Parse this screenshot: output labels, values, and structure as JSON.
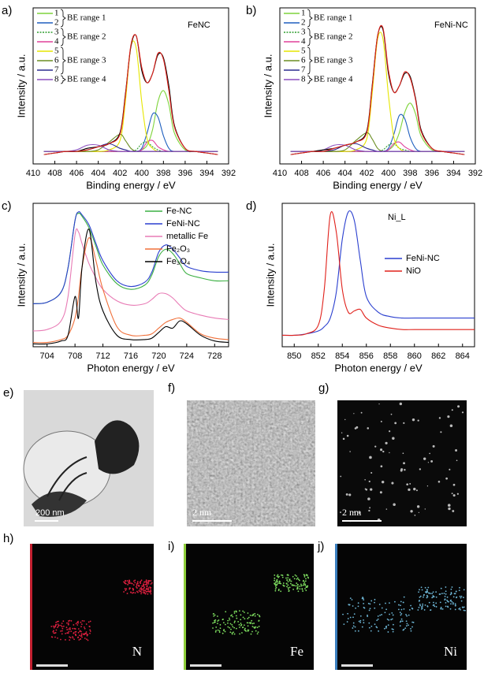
{
  "chart_data": [
    {
      "type": "line",
      "panel_label": "a)",
      "label": "FeNC",
      "x_label": "Binding energy / eV",
      "y_label": "Intensity / a.u.",
      "xlim": [
        410,
        392
      ],
      "xticks": [
        410,
        408,
        406,
        404,
        402,
        400,
        398,
        396,
        394,
        392
      ],
      "ylim": [
        0,
        100
      ],
      "legend": "upper left",
      "annotations": [
        "BE range 1",
        "BE range 2",
        "BE range 3",
        "BE range 4"
      ],
      "x": [
        409,
        408,
        407,
        406,
        405,
        404,
        403,
        402,
        401.5,
        401,
        400.5,
        400,
        399.5,
        399,
        398.5,
        398,
        397.5,
        397,
        396,
        395,
        394,
        393
      ],
      "series": [
        {
          "name": "1",
          "color": "#7fd43b",
          "values": [
            8,
            8,
            8,
            8,
            8,
            8,
            8,
            8,
            8,
            8,
            8,
            9,
            12,
            22,
            40,
            47,
            38,
            20,
            9,
            8,
            8,
            8
          ]
        },
        {
          "name": "2",
          "color": "#1f5fbf",
          "values": [
            8,
            8,
            8,
            8,
            8,
            8,
            8,
            8,
            8,
            8,
            8,
            10,
            20,
            32,
            30,
            18,
            10,
            8,
            8,
            8,
            8,
            8
          ]
        },
        {
          "name": "3",
          "color": "#2f9e2f",
          "dashed": true,
          "values": [
            8,
            8,
            8,
            8,
            8,
            8,
            8,
            8,
            8,
            8,
            9,
            13,
            14,
            11,
            9,
            8,
            8,
            8,
            8,
            8,
            8,
            8
          ]
        },
        {
          "name": "4",
          "color": "#e0409a",
          "values": [
            8,
            8,
            8,
            8,
            8,
            8,
            8,
            8,
            8,
            8,
            8,
            9,
            14,
            15,
            11,
            9,
            8,
            8,
            8,
            8,
            8,
            8
          ]
        },
        {
          "name": "5",
          "color": "#e6e600",
          "values": [
            8,
            8,
            8,
            8,
            8,
            8,
            9,
            15,
            40,
            75,
            74,
            40,
            16,
            10,
            8,
            8,
            8,
            8,
            8,
            8,
            8,
            8
          ]
        },
        {
          "name": "6",
          "color": "#6b8e23",
          "values": [
            8,
            8,
            8,
            8,
            8,
            9,
            14,
            19,
            15,
            10,
            8,
            8,
            8,
            8,
            8,
            8,
            8,
            8,
            8,
            8,
            8,
            8
          ]
        },
        {
          "name": "7",
          "color": "#2b2b8f",
          "values": [
            8,
            8,
            8,
            8,
            9,
            11,
            13,
            10,
            9,
            8,
            8,
            8,
            8,
            8,
            8,
            8,
            8,
            8,
            8,
            8,
            8,
            8
          ]
        },
        {
          "name": "8",
          "color": "#8b4fbf",
          "values": [
            8,
            8,
            8,
            9,
            12,
            12,
            9,
            8,
            8,
            8,
            8,
            8,
            8,
            8,
            8,
            8,
            8,
            8,
            8,
            8,
            8,
            8
          ]
        },
        {
          "color": "#000000",
          "values": [
            6,
            7,
            8,
            8,
            10,
            11,
            13,
            20,
            45,
            75,
            82,
            60,
            52,
            58,
            70,
            68,
            50,
            25,
            10,
            8,
            7,
            6
          ]
        },
        {
          "color": "#e0201a",
          "values": [
            6,
            7,
            8,
            8,
            9,
            11,
            13,
            19,
            44,
            76,
            82,
            62,
            52,
            58,
            71,
            67,
            47,
            24,
            10,
            8,
            7,
            6
          ]
        }
      ]
    },
    {
      "type": "line",
      "panel_label": "b)",
      "label": "FeNi-NC",
      "x_label": "Binding energy / eV",
      "y_label": "Intensity / a.u.",
      "xlim": [
        410,
        392
      ],
      "xticks": [
        410,
        408,
        406,
        404,
        402,
        400,
        398,
        396,
        394,
        392
      ],
      "ylim": [
        0,
        100
      ],
      "legend": "upper left",
      "annotations": [
        "BE range 1",
        "BE range 2",
        "BE range 3",
        "BE range 4"
      ],
      "x": [
        409,
        408,
        407,
        406,
        405,
        404,
        403,
        402,
        401.5,
        401,
        400.5,
        400,
        399.5,
        399,
        398.5,
        398,
        397.5,
        397,
        396,
        395,
        394,
        393
      ],
      "series": [
        {
          "name": "1",
          "color": "#7fd43b",
          "values": [
            8,
            8,
            8,
            8,
            8,
            8,
            8,
            8,
            8,
            8,
            8,
            9,
            12,
            20,
            33,
            39,
            32,
            18,
            9,
            8,
            8,
            8
          ]
        },
        {
          "name": "2",
          "color": "#1f5fbf",
          "values": [
            8,
            8,
            8,
            8,
            8,
            8,
            8,
            8,
            8,
            8,
            8,
            10,
            19,
            31,
            29,
            17,
            10,
            8,
            8,
            8,
            8,
            8
          ]
        },
        {
          "name": "3",
          "color": "#2f9e2f",
          "dashed": true,
          "values": [
            8,
            8,
            8,
            8,
            8,
            8,
            8,
            8,
            8,
            8,
            9,
            12,
            13,
            10,
            9,
            8,
            8,
            8,
            8,
            8,
            8,
            8
          ]
        },
        {
          "name": "4",
          "color": "#e0409a",
          "values": [
            8,
            8,
            8,
            8,
            8,
            8,
            8,
            8,
            8,
            8,
            8,
            9,
            13,
            14,
            11,
            9,
            8,
            8,
            8,
            8,
            8,
            8
          ]
        },
        {
          "name": "5",
          "color": "#e6e600",
          "values": [
            8,
            8,
            8,
            8,
            8,
            8,
            9,
            16,
            45,
            80,
            80,
            44,
            17,
            10,
            8,
            8,
            8,
            8,
            8,
            8,
            8,
            8
          ]
        },
        {
          "name": "6",
          "color": "#6b8e23",
          "values": [
            8,
            8,
            8,
            8,
            8,
            9,
            15,
            20,
            16,
            10,
            8,
            8,
            8,
            8,
            8,
            8,
            8,
            8,
            8,
            8,
            8,
            8
          ]
        },
        {
          "name": "7",
          "color": "#2b2b8f",
          "values": [
            8,
            8,
            8,
            8,
            9,
            12,
            13,
            10,
            9,
            8,
            8,
            8,
            8,
            8,
            8,
            8,
            8,
            8,
            8,
            8,
            8,
            8
          ]
        },
        {
          "name": "8",
          "color": "#8b4fbf",
          "values": [
            8,
            8,
            8,
            9,
            12,
            12,
            9,
            8,
            8,
            8,
            8,
            8,
            8,
            8,
            8,
            8,
            8,
            8,
            8,
            8,
            8,
            8
          ]
        },
        {
          "color": "#000000",
          "values": [
            6,
            7,
            8,
            9,
            10,
            12,
            14,
            21,
            50,
            82,
            86,
            58,
            46,
            50,
            58,
            56,
            42,
            22,
            10,
            8,
            7,
            6
          ]
        },
        {
          "color": "#e0201a",
          "values": [
            6,
            7,
            8,
            8,
            10,
            12,
            14,
            20,
            49,
            82,
            87,
            60,
            46,
            50,
            59,
            55,
            41,
            21,
            10,
            8,
            7,
            6
          ]
        }
      ]
    },
    {
      "type": "line",
      "panel_label": "c)",
      "x_label": "Photon energy / eV",
      "y_label": "Intensity / a.u.",
      "xlim": [
        702,
        730
      ],
      "xticks": [
        704,
        708,
        712,
        716,
        720,
        724,
        728
      ],
      "ylim": [
        0,
        100
      ],
      "legend": "upper right",
      "x": [
        702,
        704,
        706,
        707,
        708,
        708.5,
        709,
        710,
        711,
        712,
        714,
        716,
        718,
        719,
        720,
        721,
        722,
        723,
        724,
        726,
        728,
        730
      ],
      "series": [
        {
          "name": "Fe-NC",
          "color": "#3cb043",
          "values": [
            30,
            31,
            38,
            55,
            88,
            93,
            91,
            83,
            70,
            57,
            44,
            40,
            43,
            50,
            63,
            68,
            65,
            58,
            51,
            48,
            46,
            46
          ]
        },
        {
          "name": "FeNi-NC",
          "color": "#2a3fcf",
          "values": [
            30,
            31,
            38,
            55,
            88,
            94,
            92,
            85,
            72,
            60,
            46,
            42,
            45,
            52,
            66,
            71,
            68,
            62,
            56,
            53,
            52,
            52
          ]
        },
        {
          "name": "metallic Fe",
          "color": "#e87bb5",
          "values": [
            11,
            12,
            18,
            35,
            78,
            80,
            72,
            58,
            48,
            40,
            32,
            29,
            30,
            33,
            37,
            37,
            34,
            29,
            25,
            22,
            20,
            19
          ]
        },
        {
          "name": "Fe₂O₃",
          "color": "#f0703a",
          "values": [
            3,
            3,
            5,
            8,
            20,
            35,
            55,
            76,
            60,
            40,
            14,
            8,
            8,
            9,
            13,
            17,
            19,
            20,
            17,
            9,
            6,
            5
          ]
        },
        {
          "name": "Fe₃O₄",
          "color": "#000000",
          "values": [
            2,
            2,
            4,
            8,
            35,
            20,
            55,
            82,
            45,
            25,
            8,
            5,
            5,
            6,
            10,
            14,
            13,
            18,
            16,
            8,
            4,
            3
          ]
        }
      ]
    },
    {
      "type": "line",
      "panel_label": "d)",
      "label": "Ni_L",
      "x_label": "Photon energy / eV",
      "y_label": "Intensity / a.u.",
      "xlim": [
        849,
        865
      ],
      "xticks": [
        850,
        852,
        854,
        856,
        858,
        860,
        862,
        864
      ],
      "ylim": [
        0,
        100
      ],
      "legend": "center right",
      "x": [
        849,
        850,
        851,
        852,
        852.5,
        853,
        853.5,
        854,
        854.5,
        855,
        855.5,
        856,
        857,
        858,
        859,
        860,
        862,
        864,
        865
      ],
      "series": [
        {
          "name": "FeNi-NC",
          "color": "#2a3fcf",
          "values": [
            8,
            8,
            9,
            11,
            14,
            20,
            38,
            75,
            94,
            88,
            60,
            35,
            24,
            21,
            20,
            20,
            20,
            20,
            20
          ]
        },
        {
          "name": "NiO",
          "color": "#e0201a",
          "values": [
            8,
            8,
            9,
            15,
            40,
            92,
            80,
            40,
            24,
            25,
            26,
            20,
            15,
            13,
            12,
            12,
            12,
            12,
            12
          ]
        }
      ]
    }
  ],
  "images": [
    {
      "panel_label": "e)",
      "scale_bar": "200 nm"
    },
    {
      "panel_label": "f)",
      "scale_bar": "2 nm"
    },
    {
      "panel_label": "g)",
      "scale_bar": "2 nm"
    },
    {
      "panel_label": "h)",
      "element": "N"
    },
    {
      "panel_label": "i)",
      "element": "Fe"
    },
    {
      "panel_label": "j)",
      "element": "Ni"
    }
  ]
}
